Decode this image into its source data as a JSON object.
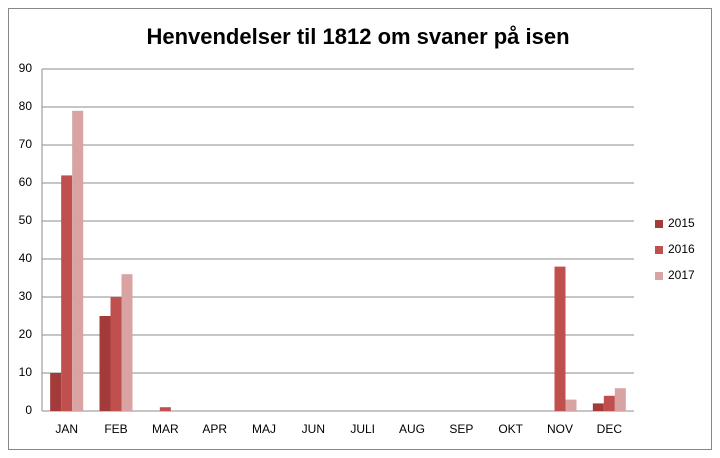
{
  "chart_data": {
    "type": "bar",
    "title": "Henvendelser  til 1812 om svaner på isen",
    "categories": [
      "JAN",
      "FEB",
      "MAR",
      "APR",
      "MAJ",
      "JUN",
      "JULI",
      "AUG",
      "SEP",
      "OKT",
      "NOV",
      "DEC"
    ],
    "series": [
      {
        "name": "2015",
        "color": "#a33b3b",
        "values": [
          10,
          25,
          0,
          0,
          0,
          0,
          0,
          0,
          0,
          0,
          0,
          2
        ]
      },
      {
        "name": "2016",
        "color": "#c0504d",
        "values": [
          62,
          30,
          1,
          0,
          0,
          0,
          0,
          0,
          0,
          0,
          38,
          4
        ]
      },
      {
        "name": "2017",
        "color": "#d9a3a3",
        "values": [
          79,
          36,
          0,
          0,
          0,
          0,
          0,
          0,
          0,
          0,
          3,
          6
        ]
      }
    ],
    "ylim": [
      0,
      90
    ],
    "yticks": [
      0,
      10,
      20,
      30,
      40,
      50,
      60,
      70,
      80,
      90
    ],
    "grid": true,
    "legend": "right"
  }
}
